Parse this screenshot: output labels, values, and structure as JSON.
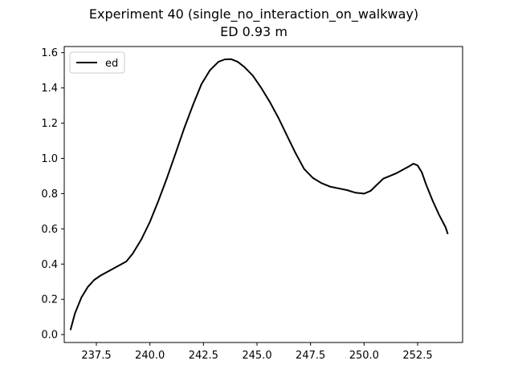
{
  "chart_data": {
    "type": "line",
    "title": "Experiment 40 (single_no_interaction_on_walkway)",
    "subtitle": "ED 0.93 m",
    "xlabel": "",
    "ylabel": "",
    "xlim": [
      236.0,
      254.6
    ],
    "ylim": [
      -0.045,
      1.635
    ],
    "x_ticks": [
      237.5,
      240.0,
      242.5,
      245.0,
      247.5,
      250.0,
      252.5
    ],
    "x_tick_labels": [
      "237.5",
      "240.0",
      "242.5",
      "245.0",
      "247.5",
      "250.0",
      "252.5"
    ],
    "y_ticks": [
      0.0,
      0.2,
      0.4,
      0.6,
      0.8,
      1.0,
      1.2,
      1.4,
      1.6
    ],
    "y_tick_labels": [
      "0.0",
      "0.2",
      "0.4",
      "0.6",
      "0.8",
      "1.0",
      "1.2",
      "1.4",
      "1.6"
    ],
    "grid": false,
    "legend_position": "top-left",
    "series": [
      {
        "name": "ed",
        "color": "#000000",
        "x": [
          236.3,
          236.5,
          236.8,
          237.1,
          237.4,
          237.7,
          238.0,
          238.3,
          238.6,
          238.9,
          239.2,
          239.6,
          240.0,
          240.4,
          240.8,
          241.2,
          241.6,
          242.0,
          242.4,
          242.8,
          243.2,
          243.5,
          243.8,
          244.1,
          244.4,
          244.8,
          245.2,
          245.6,
          246.0,
          246.4,
          246.8,
          247.2,
          247.6,
          248.0,
          248.4,
          248.8,
          249.2,
          249.6,
          250.0,
          250.3,
          250.6,
          250.9,
          251.2,
          251.5,
          251.8,
          252.1,
          252.3,
          252.5,
          252.7,
          252.9,
          253.2,
          253.5,
          253.8,
          253.9
        ],
        "y": [
          0.03,
          0.12,
          0.21,
          0.27,
          0.31,
          0.335,
          0.355,
          0.375,
          0.395,
          0.415,
          0.46,
          0.54,
          0.64,
          0.76,
          0.89,
          1.03,
          1.17,
          1.3,
          1.42,
          1.5,
          1.548,
          1.562,
          1.563,
          1.548,
          1.52,
          1.47,
          1.4,
          1.32,
          1.23,
          1.13,
          1.03,
          0.94,
          0.89,
          0.86,
          0.84,
          0.83,
          0.82,
          0.805,
          0.8,
          0.815,
          0.85,
          0.885,
          0.9,
          0.915,
          0.935,
          0.955,
          0.97,
          0.96,
          0.92,
          0.85,
          0.76,
          0.68,
          0.61,
          0.575
        ]
      }
    ]
  }
}
